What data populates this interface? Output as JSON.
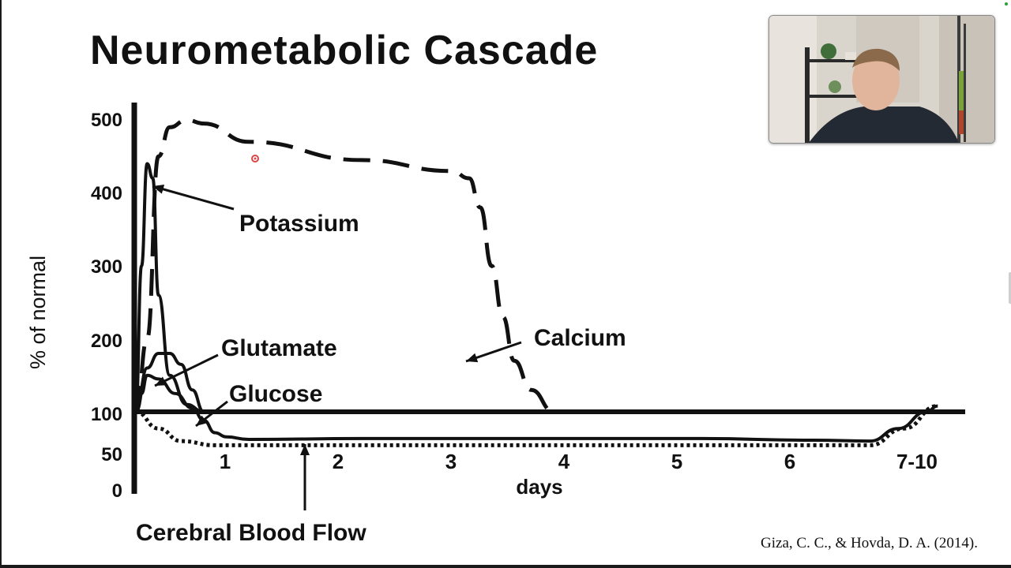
{
  "slide": {
    "title": "Neurometabolic Cascade",
    "citation": "Giza, C. C., & Hovda, D. A. (2014)."
  },
  "chart_data": {
    "type": "line",
    "ylabel": "% of normal",
    "xlabel": "days",
    "x_ticks": [
      "1",
      "2",
      "3",
      "4",
      "5",
      "6",
      "7-10"
    ],
    "y_ticks": [
      "500",
      "400",
      "300",
      "200",
      "100",
      "50",
      "0"
    ],
    "xlim": [
      0,
      7
    ],
    "ylim": [
      0,
      500
    ],
    "baseline": 100,
    "annotations": [
      "Potassium",
      "Calcium",
      "Glutamate",
      "Glucose",
      "Cerebral Blood Flow"
    ],
    "series": [
      {
        "name": "Potassium",
        "style": "solid",
        "points": [
          [
            0,
            100
          ],
          [
            0.05,
            300
          ],
          [
            0.1,
            440
          ],
          [
            0.15,
            420
          ],
          [
            0.2,
            260
          ],
          [
            0.3,
            150
          ],
          [
            0.45,
            110
          ],
          [
            0.6,
            100
          ]
        ]
      },
      {
        "name": "Calcium",
        "style": "dashed",
        "points": [
          [
            0,
            100
          ],
          [
            0.1,
            200
          ],
          [
            0.2,
            450
          ],
          [
            0.3,
            490
          ],
          [
            0.45,
            500
          ],
          [
            0.6,
            495
          ],
          [
            1,
            470
          ],
          [
            2,
            445
          ],
          [
            2.8,
            430
          ],
          [
            2.95,
            420
          ],
          [
            3.05,
            380
          ],
          [
            3.15,
            300
          ],
          [
            3.25,
            230
          ],
          [
            3.35,
            170
          ],
          [
            3.5,
            130
          ],
          [
            3.7,
            100
          ]
        ]
      },
      {
        "name": "Glutamate",
        "style": "solid",
        "points": [
          [
            0,
            100
          ],
          [
            0.1,
            160
          ],
          [
            0.2,
            180
          ],
          [
            0.3,
            180
          ],
          [
            0.4,
            165
          ],
          [
            0.5,
            130
          ],
          [
            0.6,
            100
          ]
        ]
      },
      {
        "name": "Glucose",
        "style": "solid",
        "points": [
          [
            0,
            100
          ],
          [
            0.05,
            125
          ],
          [
            0.1,
            150
          ],
          [
            0.2,
            145
          ],
          [
            0.35,
            125
          ],
          [
            0.5,
            105
          ],
          [
            0.6,
            90
          ],
          [
            0.7,
            75
          ],
          [
            0.8,
            70
          ],
          [
            1,
            67
          ],
          [
            2,
            68
          ],
          [
            3,
            68
          ],
          [
            4,
            68
          ],
          [
            5,
            68
          ],
          [
            6,
            66
          ],
          [
            6.5,
            65
          ],
          [
            6.75,
            80
          ],
          [
            7,
            100
          ],
          [
            7.1,
            108
          ]
        ]
      },
      {
        "name": "Cerebral Blood Flow",
        "style": "dotted",
        "points": [
          [
            0,
            100
          ],
          [
            0.2,
            80
          ],
          [
            0.4,
            65
          ],
          [
            0.7,
            60
          ],
          [
            1,
            60
          ],
          [
            2,
            60
          ],
          [
            3,
            60
          ],
          [
            4,
            60
          ],
          [
            5,
            60
          ],
          [
            6,
            60
          ],
          [
            6.5,
            60
          ],
          [
            6.8,
            80
          ],
          [
            7.1,
            108
          ]
        ]
      }
    ]
  }
}
